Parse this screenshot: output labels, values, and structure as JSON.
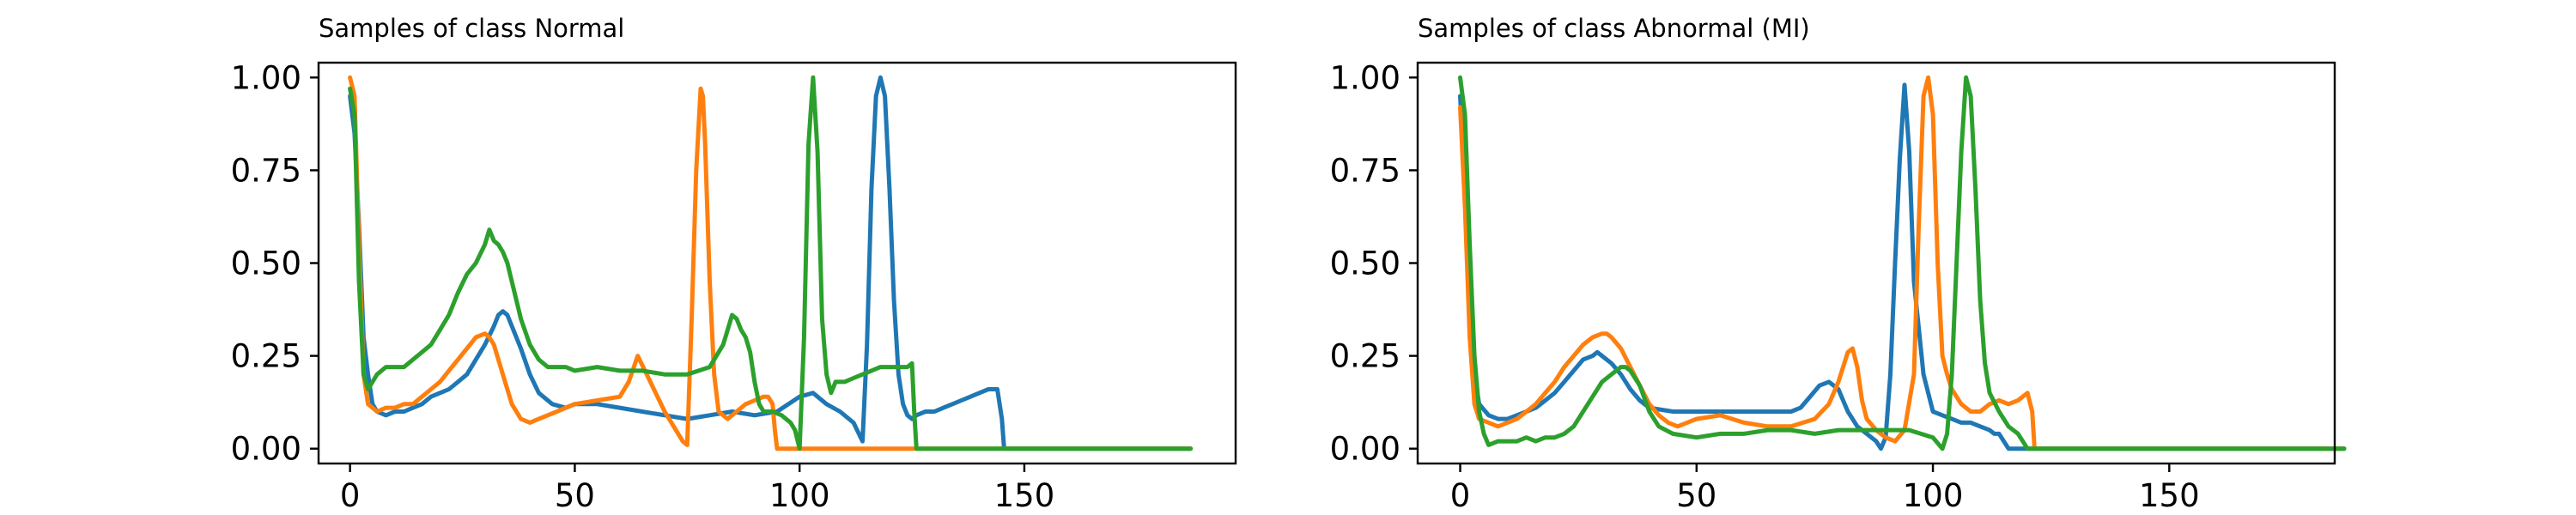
{
  "chart_data": [
    {
      "type": "line",
      "title": "Samples of class Normal",
      "xlabel": "",
      "ylabel": "",
      "xlim": [
        -7,
        197
      ],
      "ylim": [
        -0.04,
        1.04
      ],
      "xticks": [
        0,
        50,
        100,
        150
      ],
      "xtick_labels": [
        "0",
        "50",
        "100",
        "150"
      ],
      "yticks": [
        0,
        0.25,
        0.5,
        0.75,
        1.0
      ],
      "ytick_labels": [
        "0.00",
        "0.25",
        "0.50",
        "0.75",
        "1.00"
      ],
      "grid": false,
      "series": [
        {
          "color": "#1f77b4",
          "x": [
            0,
            1,
            2,
            3,
            4,
            5,
            6,
            8,
            10,
            12,
            14,
            16,
            18,
            20,
            22,
            24,
            26,
            28,
            30,
            32,
            33,
            34,
            35,
            36,
            38,
            40,
            42,
            45,
            48,
            50,
            55,
            60,
            65,
            70,
            75,
            80,
            85,
            90,
            95,
            100,
            103,
            106,
            109,
            112,
            114,
            115,
            116,
            117,
            118,
            119,
            120,
            121,
            122,
            123,
            124,
            125,
            126,
            128,
            130,
            132,
            134,
            136,
            138,
            140,
            142,
            144,
            145,
            145.5,
            146,
            150,
            160,
            170,
            180,
            187
          ],
          "y": [
            0.95,
            0.85,
            0.6,
            0.3,
            0.2,
            0.12,
            0.1,
            0.09,
            0.1,
            0.1,
            0.11,
            0.12,
            0.14,
            0.15,
            0.16,
            0.18,
            0.2,
            0.24,
            0.28,
            0.33,
            0.36,
            0.37,
            0.36,
            0.33,
            0.27,
            0.2,
            0.15,
            0.12,
            0.11,
            0.12,
            0.12,
            0.11,
            0.1,
            0.09,
            0.08,
            0.09,
            0.1,
            0.09,
            0.1,
            0.14,
            0.15,
            0.12,
            0.1,
            0.07,
            0.02,
            0.28,
            0.7,
            0.95,
            1.0,
            0.95,
            0.7,
            0.4,
            0.2,
            0.12,
            0.09,
            0.08,
            0.09,
            0.1,
            0.1,
            0.11,
            0.12,
            0.13,
            0.14,
            0.15,
            0.16,
            0.16,
            0.08,
            0.0,
            0.0,
            0.0,
            0.0,
            0.0,
            0.0,
            0.0
          ]
        },
        {
          "color": "#ff7f0e",
          "x": [
            0,
            1,
            2,
            3,
            4,
            6,
            8,
            10,
            12,
            14,
            16,
            18,
            20,
            22,
            24,
            26,
            28,
            30,
            31,
            32,
            34,
            36,
            38,
            40,
            42,
            44,
            46,
            48,
            50,
            55,
            60,
            62,
            64,
            66,
            68,
            70,
            72,
            74,
            75,
            76,
            77,
            78,
            78.5,
            79,
            80,
            81,
            82,
            84,
            86,
            88,
            90,
            92,
            93,
            94,
            94.5,
            95,
            100,
            110,
            120,
            130,
            140,
            150,
            160,
            170,
            180,
            187
          ],
          "y": [
            1.0,
            0.95,
            0.55,
            0.2,
            0.12,
            0.1,
            0.11,
            0.11,
            0.12,
            0.12,
            0.14,
            0.16,
            0.18,
            0.21,
            0.24,
            0.27,
            0.3,
            0.31,
            0.3,
            0.28,
            0.2,
            0.12,
            0.08,
            0.07,
            0.08,
            0.09,
            0.1,
            0.11,
            0.12,
            0.13,
            0.14,
            0.18,
            0.25,
            0.2,
            0.15,
            0.1,
            0.06,
            0.02,
            0.01,
            0.35,
            0.75,
            0.97,
            0.95,
            0.82,
            0.45,
            0.2,
            0.1,
            0.08,
            0.1,
            0.12,
            0.13,
            0.14,
            0.14,
            0.12,
            0.05,
            0.0,
            0.0,
            0.0,
            0.0,
            0.0,
            0.0,
            0.0,
            0.0,
            0.0,
            0.0,
            0.0
          ]
        },
        {
          "color": "#2ca02c",
          "x": [
            0,
            1,
            2,
            3,
            4,
            6,
            8,
            10,
            12,
            14,
            16,
            18,
            20,
            22,
            24,
            26,
            28,
            30,
            31,
            32,
            33,
            34,
            35,
            36,
            38,
            40,
            42,
            44,
            46,
            48,
            50,
            55,
            60,
            65,
            70,
            75,
            80,
            83,
            85,
            86,
            87,
            88,
            89,
            90,
            91,
            92,
            94,
            96,
            98,
            99,
            100,
            101,
            102,
            103,
            104,
            105,
            106,
            107,
            108,
            110,
            112,
            114,
            116,
            118,
            120,
            122,
            124,
            125,
            125.5,
            126,
            130,
            140,
            150,
            160,
            170,
            180,
            187
          ],
          "y": [
            0.97,
            0.9,
            0.45,
            0.2,
            0.16,
            0.2,
            0.22,
            0.22,
            0.22,
            0.24,
            0.26,
            0.28,
            0.32,
            0.36,
            0.42,
            0.47,
            0.5,
            0.55,
            0.59,
            0.56,
            0.55,
            0.53,
            0.5,
            0.45,
            0.35,
            0.28,
            0.24,
            0.22,
            0.22,
            0.22,
            0.21,
            0.22,
            0.21,
            0.21,
            0.2,
            0.2,
            0.22,
            0.28,
            0.36,
            0.35,
            0.32,
            0.3,
            0.26,
            0.18,
            0.12,
            0.1,
            0.1,
            0.09,
            0.07,
            0.05,
            0.0,
            0.3,
            0.82,
            1.0,
            0.8,
            0.35,
            0.2,
            0.15,
            0.18,
            0.18,
            0.19,
            0.2,
            0.21,
            0.22,
            0.22,
            0.22,
            0.22,
            0.23,
            0.1,
            0.0,
            0.0,
            0.0,
            0.0,
            0.0,
            0.0,
            0.0,
            0.0
          ]
        }
      ]
    },
    {
      "type": "line",
      "title": "Samples of class Abnormal (MI)",
      "xlabel": "",
      "ylabel": "",
      "xlim": [
        -9,
        185
      ],
      "ylim": [
        -0.04,
        1.04
      ],
      "xticks": [
        0,
        50,
        100,
        150
      ],
      "xtick_labels": [
        "0",
        "50",
        "100",
        "150"
      ],
      "yticks": [
        0,
        0.25,
        0.5,
        0.75,
        1.0
      ],
      "ytick_labels": [
        "0.00",
        "0.25",
        "0.50",
        "0.75",
        "1.00"
      ],
      "grid": false,
      "series": [
        {
          "color": "#1f77b4",
          "x": [
            0,
            1,
            2,
            3,
            4,
            6,
            8,
            10,
            12,
            14,
            16,
            18,
            20,
            22,
            24,
            26,
            28,
            29,
            30,
            32,
            34,
            36,
            38,
            40,
            45,
            50,
            55,
            60,
            65,
            70,
            72,
            74,
            76,
            78,
            80,
            82,
            84,
            86,
            88,
            89,
            90,
            91,
            92,
            93,
            94,
            95,
            96,
            98,
            100,
            102,
            104,
            106,
            108,
            110,
            112,
            113,
            114,
            115,
            116,
            120,
            130,
            140,
            150,
            160,
            170,
            180,
            187
          ],
          "y": [
            0.95,
            0.7,
            0.4,
            0.2,
            0.12,
            0.09,
            0.08,
            0.08,
            0.09,
            0.1,
            0.11,
            0.13,
            0.15,
            0.18,
            0.21,
            0.24,
            0.25,
            0.26,
            0.25,
            0.23,
            0.2,
            0.16,
            0.13,
            0.11,
            0.1,
            0.1,
            0.1,
            0.1,
            0.1,
            0.1,
            0.11,
            0.14,
            0.17,
            0.18,
            0.16,
            0.1,
            0.06,
            0.04,
            0.02,
            0.0,
            0.03,
            0.2,
            0.5,
            0.78,
            0.98,
            0.8,
            0.45,
            0.2,
            0.1,
            0.09,
            0.08,
            0.07,
            0.07,
            0.06,
            0.05,
            0.04,
            0.04,
            0.02,
            0.0,
            0.0,
            0.0,
            0.0,
            0.0,
            0.0,
            0.0,
            0.0,
            0.0
          ]
        },
        {
          "color": "#ff7f0e",
          "x": [
            0,
            1,
            2,
            3,
            4,
            6,
            8,
            10,
            12,
            14,
            16,
            18,
            20,
            22,
            24,
            26,
            28,
            30,
            31,
            32,
            34,
            36,
            38,
            40,
            42,
            44,
            46,
            48,
            50,
            55,
            60,
            65,
            70,
            75,
            78,
            80,
            82,
            83,
            84,
            85,
            86,
            88,
            90,
            92,
            94,
            96,
            97,
            98,
            99,
            100,
            101,
            102,
            103,
            104,
            106,
            108,
            110,
            112,
            114,
            116,
            118,
            120,
            121,
            121.5,
            122,
            130,
            140,
            150,
            160,
            170,
            180,
            187
          ],
          "y": [
            0.92,
            0.65,
            0.3,
            0.12,
            0.08,
            0.07,
            0.06,
            0.07,
            0.08,
            0.1,
            0.12,
            0.15,
            0.18,
            0.22,
            0.25,
            0.28,
            0.3,
            0.31,
            0.31,
            0.3,
            0.27,
            0.22,
            0.17,
            0.12,
            0.09,
            0.07,
            0.06,
            0.07,
            0.08,
            0.09,
            0.07,
            0.06,
            0.06,
            0.08,
            0.12,
            0.18,
            0.26,
            0.27,
            0.22,
            0.13,
            0.08,
            0.05,
            0.03,
            0.02,
            0.05,
            0.2,
            0.6,
            0.95,
            1.0,
            0.9,
            0.5,
            0.25,
            0.2,
            0.16,
            0.12,
            0.1,
            0.1,
            0.12,
            0.13,
            0.12,
            0.13,
            0.15,
            0.1,
            0.0,
            0.0,
            0.0,
            0.0,
            0.0,
            0.0,
            0.0,
            0.0,
            0.0
          ]
        },
        {
          "color": "#2ca02c",
          "x": [
            0,
            1,
            2,
            3,
            4,
            5,
            6,
            8,
            10,
            12,
            14,
            16,
            18,
            20,
            22,
            24,
            26,
            28,
            30,
            32,
            34,
            35,
            36,
            38,
            40,
            42,
            45,
            50,
            55,
            60,
            65,
            70,
            75,
            80,
            85,
            90,
            95,
            100,
            102,
            103,
            104,
            105,
            106,
            107,
            108,
            109,
            110,
            111,
            112,
            114,
            116,
            118,
            119,
            120,
            121,
            122,
            123,
            130,
            140,
            150,
            160,
            170,
            180,
            187
          ],
          "y": [
            1.0,
            0.9,
            0.55,
            0.25,
            0.1,
            0.04,
            0.01,
            0.02,
            0.02,
            0.02,
            0.03,
            0.02,
            0.03,
            0.03,
            0.04,
            0.06,
            0.1,
            0.14,
            0.18,
            0.2,
            0.22,
            0.22,
            0.21,
            0.17,
            0.1,
            0.06,
            0.04,
            0.03,
            0.04,
            0.04,
            0.05,
            0.05,
            0.04,
            0.05,
            0.05,
            0.05,
            0.05,
            0.03,
            0.0,
            0.04,
            0.2,
            0.5,
            0.8,
            1.0,
            0.95,
            0.7,
            0.4,
            0.23,
            0.15,
            0.1,
            0.06,
            0.04,
            0.02,
            0.0,
            0.0,
            0.0,
            0.0,
            0.0,
            0.0,
            0.0,
            0.0,
            0.0,
            0.0,
            0.0
          ]
        }
      ]
    }
  ]
}
